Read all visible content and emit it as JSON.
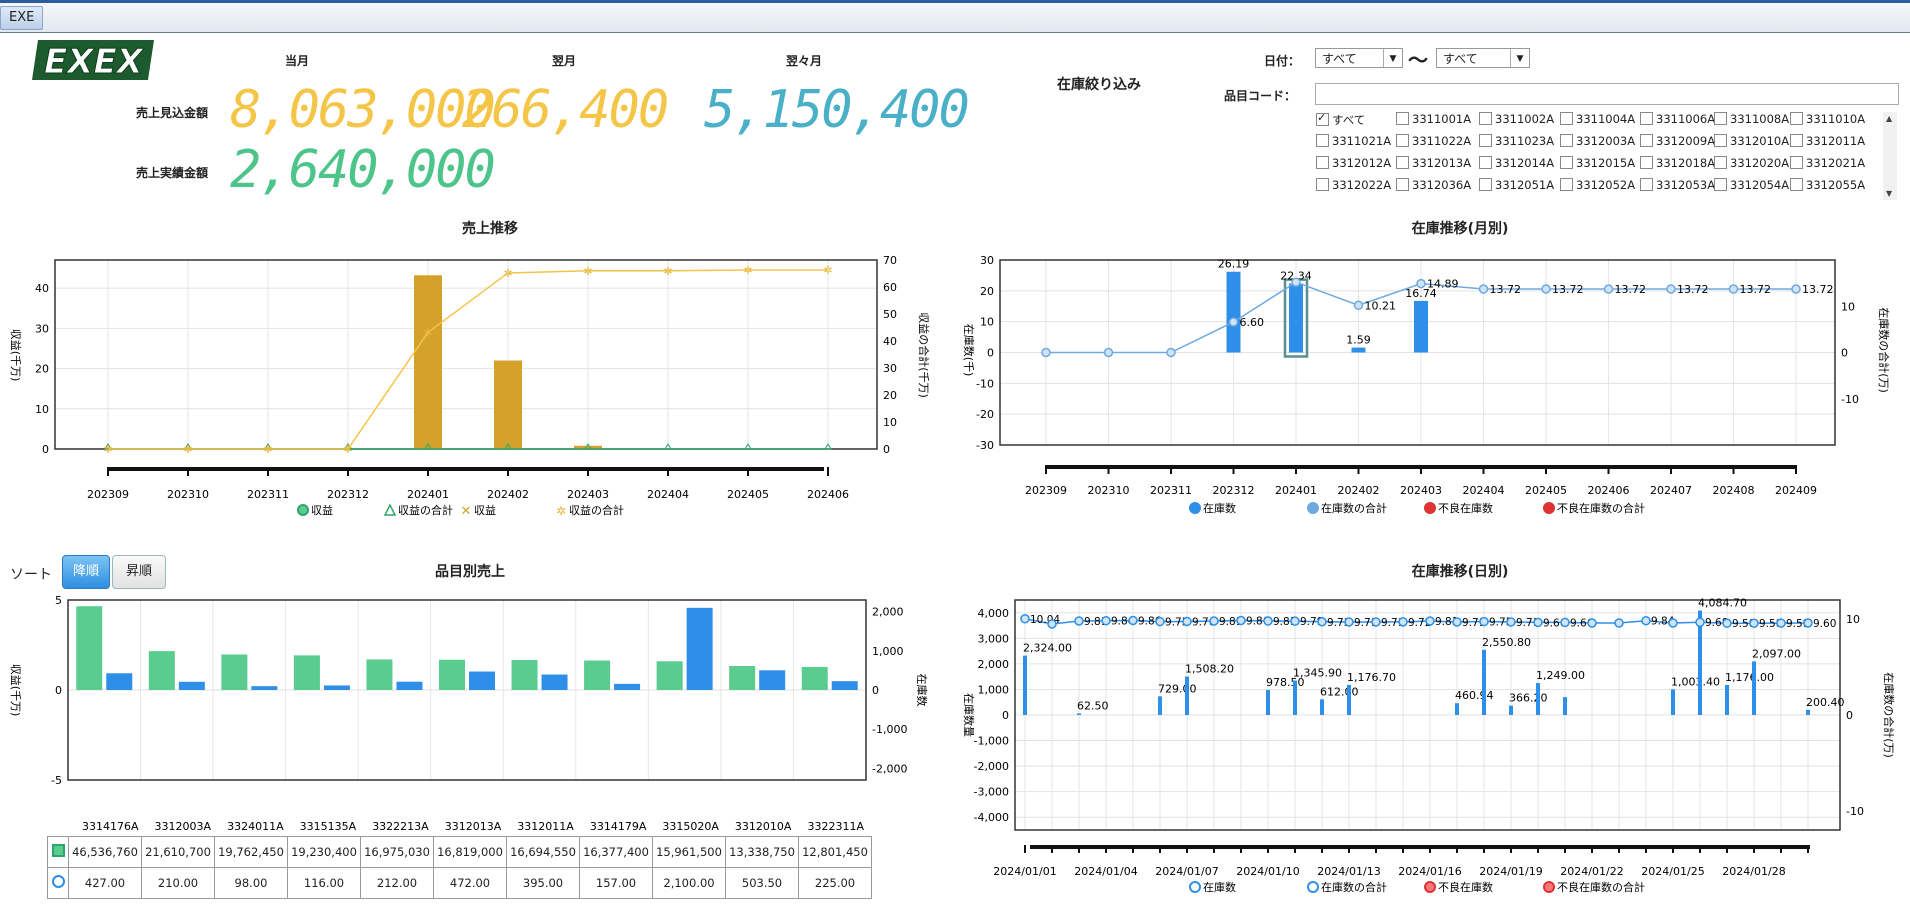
{
  "app": {
    "tab_label": "EXE"
  },
  "summary": {
    "headers": [
      "当月",
      "翌月",
      "翌々月"
    ],
    "row1_label": "売上見込金額",
    "row2_label": "売上実績金額",
    "forecast": [
      "8,063,000",
      "266,400",
      "5,150,400"
    ],
    "actual": [
      "2,640,000"
    ],
    "colors": {
      "yellow": "#f5c548",
      "teal": "#4ab0c8",
      "green": "#4cc48a"
    }
  },
  "filter": {
    "title": "在庫絞り込み",
    "date_label": "日付：",
    "date_from": "すべて",
    "date_tilde": "〜",
    "date_to": "すべて",
    "code_label": "品目コード：",
    "code_value": "",
    "checkboxes": [
      {
        "label": "すべて",
        "checked": true
      },
      {
        "label": "3311001A",
        "checked": false
      },
      {
        "label": "3311002A",
        "checked": false
      },
      {
        "label": "3311004A",
        "checked": false
      },
      {
        "label": "3311006A",
        "checked": false
      },
      {
        "label": "3311008A",
        "checked": false
      },
      {
        "label": "3311010A",
        "checked": false
      },
      {
        "label": "3311021A",
        "checked": false
      },
      {
        "label": "3311022A",
        "checked": false
      },
      {
        "label": "3311023A",
        "checked": false
      },
      {
        "label": "3312003A",
        "checked": false
      },
      {
        "label": "3312009A",
        "checked": false
      },
      {
        "label": "3312010A",
        "checked": false
      },
      {
        "label": "3312011A",
        "checked": false
      },
      {
        "label": "3312012A",
        "checked": false
      },
      {
        "label": "3312013A",
        "checked": false
      },
      {
        "label": "3312014A",
        "checked": false
      },
      {
        "label": "3312015A",
        "checked": false
      },
      {
        "label": "3312018A",
        "checked": false
      },
      {
        "label": "3312020A",
        "checked": false
      },
      {
        "label": "3312021A",
        "checked": false
      },
      {
        "label": "3312022A",
        "checked": false
      },
      {
        "label": "3312036A",
        "checked": false
      },
      {
        "label": "3312051A",
        "checked": false
      },
      {
        "label": "3312052A",
        "checked": false
      },
      {
        "label": "3312053A",
        "checked": false
      },
      {
        "label": "3312054A",
        "checked": false
      },
      {
        "label": "3312055A",
        "checked": false
      }
    ]
  },
  "sort": {
    "label": "ソート",
    "desc": "降順",
    "asc": "昇順",
    "active": "desc"
  },
  "chart_data": [
    {
      "id": "sales",
      "type": "bar",
      "title": "売上推移",
      "ylabel": "収益(千万)",
      "y2label": "収益の合計(千万)",
      "ylim": [
        0,
        47
      ],
      "y2lim": [
        0,
        70
      ],
      "yticks": [
        0,
        10,
        20,
        30,
        40
      ],
      "y2ticks": [
        0,
        10,
        20,
        30,
        40,
        50,
        60,
        70
      ],
      "categories": [
        "202309",
        "202310",
        "202311",
        "202312",
        "202401",
        "202402",
        "202403",
        "202404",
        "202405",
        "202406"
      ],
      "series": [
        {
          "name": "収益",
          "type": "line",
          "axis": "y",
          "color": "#2fa56a",
          "values": [
            0,
            0,
            0,
            0,
            0,
            0,
            0,
            0,
            0,
            0
          ]
        },
        {
          "name": "収益の合計",
          "type": "line",
          "axis": "y",
          "color": "#2fa56a",
          "values": [
            0,
            0,
            0,
            0,
            0,
            0,
            0,
            0,
            0,
            0
          ]
        },
        {
          "name": "収益",
          "type": "bar",
          "axis": "y",
          "color": "#d4a22a",
          "values": [
            0,
            0,
            0,
            0,
            43.2,
            22.0,
            0.8,
            0,
            0,
            0
          ]
        },
        {
          "name": "収益の合計",
          "type": "line",
          "axis": "y2",
          "color": "#f5c548",
          "values": [
            0,
            0,
            0,
            0,
            43.2,
            65.2,
            66.0,
            66.0,
            66.3,
            66.3
          ]
        }
      ],
      "legend": [
        "収益",
        "収益の合計",
        "収益",
        "収益の合計"
      ]
    },
    {
      "id": "stock_month",
      "type": "bar",
      "title": "在庫推移(月別)",
      "ylabel": "在庫数(千)",
      "y2label": "在庫数の合計(万)",
      "ylim": [
        -30,
        30
      ],
      "y2lim": [
        -20,
        20
      ],
      "yticks": [
        -30,
        -20,
        -10,
        0,
        10,
        20,
        30
      ],
      "y2ticks": [
        -10,
        0,
        10
      ],
      "categories": [
        "202309",
        "202310",
        "202311",
        "202312",
        "202401",
        "202402",
        "202403",
        "202404",
        "202405",
        "202406",
        "202407",
        "202408",
        "202409"
      ],
      "series": [
        {
          "name": "在庫数",
          "type": "bar",
          "axis": "y",
          "color": "#2e8fe8",
          "values": [
            0,
            0,
            0,
            26.19,
            22.34,
            1.59,
            16.74,
            0,
            0,
            0,
            0,
            0,
            0
          ]
        },
        {
          "name": "在庫数の合計",
          "type": "line",
          "axis": "y2",
          "color": "#6ea9df",
          "values": [
            0,
            0,
            0,
            6.6,
            15.2,
            10.21,
            14.89,
            13.72,
            13.72,
            13.72,
            13.72,
            13.72,
            13.72
          ]
        }
      ],
      "bar_labels": [
        "",
        "",
        "",
        "26.19",
        "22.34",
        "1.59",
        "16.74",
        "",
        "",
        "",
        "",
        "",
        ""
      ],
      "line_labels": [
        "",
        "",
        "",
        "6.60",
        "",
        "10.21",
        "14.89",
        "13.72",
        "13.72",
        "13.72",
        "13.72",
        "13.72",
        "13.72"
      ],
      "legend": [
        "在庫数",
        "在庫数の合計",
        "不良在庫数",
        "不良在庫数の合計"
      ]
    },
    {
      "id": "item_sales",
      "type": "bar",
      "title": "品目別売上",
      "ylabel": "収益(千万)",
      "y2label": "在庫数",
      "ylim": [
        -5,
        5
      ],
      "y2lim": [
        -2300,
        2300
      ],
      "yticks": [
        -5,
        0,
        5
      ],
      "y2ticks": [
        -2000,
        -1000,
        0,
        1000,
        2000
      ],
      "categories": [
        "3314176A",
        "3312003A",
        "3324011A",
        "3315135A",
        "3322213A",
        "3312013A",
        "3312011A",
        "3314179A",
        "3315020A",
        "3312010A",
        "3322311A"
      ],
      "series": [
        {
          "name": "収益",
          "type": "bar",
          "axis": "y",
          "color": "#5bcc8f",
          "values": [
            46536760,
            21610700,
            19762450,
            19230400,
            16975030,
            16819000,
            16694550,
            16377400,
            15961500,
            13338750,
            12801450
          ]
        },
        {
          "name": "在庫数",
          "type": "bar",
          "axis": "y2",
          "color": "#2e8fe8",
          "values": [
            427.0,
            210.0,
            98.0,
            116.0,
            212.0,
            472.0,
            395.0,
            157.0,
            2100.0,
            503.5,
            225.0
          ]
        }
      ],
      "table_row1": [
        "46,536,760",
        "21,610,700",
        "19,762,450",
        "19,230,400",
        "16,975,030",
        "16,819,000",
        "16,694,550",
        "16,377,400",
        "15,961,500",
        "13,338,750",
        "12,801,450"
      ],
      "table_row2": [
        "427.00",
        "210.00",
        "98.00",
        "116.00",
        "212.00",
        "472.00",
        "395.00",
        "157.00",
        "2,100.00",
        "503.50",
        "225.00"
      ]
    },
    {
      "id": "stock_day",
      "type": "bar",
      "title": "在庫推移(日別)",
      "ylabel": "在庫数量",
      "y2label": "在庫数の合計(万)",
      "ylim": [
        -4500,
        4500
      ],
      "y2lim": [
        -12,
        12
      ],
      "yticks": [
        -4000,
        -3000,
        -2000,
        -1000,
        0,
        1000,
        2000,
        3000,
        4000
      ],
      "y2ticks": [
        -10,
        0,
        10
      ],
      "ytick_labels": [
        "-4,000",
        "-3,000",
        "-2,000",
        "-1,000",
        "0",
        "1,000",
        "2,000",
        "3,000",
        "4,000"
      ],
      "x_labels": [
        "2024/01/01",
        "2024/01/04",
        "2024/01/07",
        "2024/01/10",
        "2024/01/13",
        "2024/01/16",
        "2024/01/19",
        "2024/01/22",
        "2024/01/25",
        "2024/01/28"
      ],
      "days": 30,
      "bars": [
        {
          "day": 1,
          "value": 2324.0,
          "label": "2,324.00"
        },
        {
          "day": 3,
          "value": 62.5,
          "label": "62.50"
        },
        {
          "day": 6,
          "value": 729.0,
          "label": "729.00"
        },
        {
          "day": 7,
          "value": 1508.2,
          "label": "1,508.20"
        },
        {
          "day": 10,
          "value": 978.5,
          "label": "978.50"
        },
        {
          "day": 11,
          "value": 1345.9,
          "label": "1,345.90"
        },
        {
          "day": 12,
          "value": 612.0,
          "label": "612.00"
        },
        {
          "day": 13,
          "value": 1176.7,
          "label": "1,176.70"
        },
        {
          "day": 17,
          "value": 460.94,
          "label": "460.94"
        },
        {
          "day": 18,
          "value": 2550.8,
          "label": "2,550.80"
        },
        {
          "day": 19,
          "value": 366.2,
          "label": "366.20"
        },
        {
          "day": 20,
          "value": 1249.0,
          "label": "1,249.00"
        },
        {
          "day": 21,
          "value": 700.0,
          "label": ""
        },
        {
          "day": 25,
          "value": 1003.4,
          "label": "1,003.40"
        },
        {
          "day": 26,
          "value": 4084.7,
          "label": "4,084.70"
        },
        {
          "day": 27,
          "value": 1176.0,
          "label": "1,176.00"
        },
        {
          "day": 28,
          "value": 2097.0,
          "label": "2,097.00"
        },
        {
          "day": 30,
          "value": 200.4,
          "label": "200.40"
        }
      ],
      "line_values": [
        10.04,
        9.5,
        9.81,
        9.84,
        9.86,
        9.75,
        9.76,
        9.81,
        9.86,
        9.81,
        9.79,
        9.73,
        9.71,
        9.71,
        9.72,
        9.81,
        9.71,
        9.75,
        9.71,
        9.66,
        9.66,
        9.6,
        9.6,
        9.84,
        9.6,
        9.68,
        9.58,
        9.58,
        9.59,
        9.6
      ],
      "line_labels": [
        "10.04",
        "",
        "9.81",
        "9.84",
        "9.86",
        "9.75",
        "9.76",
        "9.81",
        "9.86",
        "9.81",
        "9.79",
        "9.73",
        "9.71",
        "9.71",
        "9.72",
        "9.81",
        "9.71",
        "9.75",
        "9.71",
        "9.66",
        "9.66",
        "",
        "",
        "9.84",
        "",
        "9.68",
        "9.58",
        "9.58",
        "9.59",
        "9.60"
      ],
      "legend": [
        "在庫数",
        "在庫数の合計",
        "不良在庫数",
        "不良在庫数の合計"
      ]
    }
  ]
}
